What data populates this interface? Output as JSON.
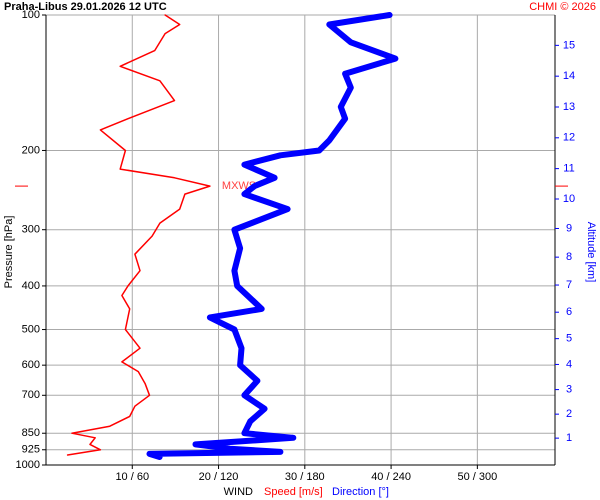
{
  "chart_data": {
    "type": "profile",
    "title": "Praha-Libus    29.01.2026 12 UTC",
    "credit": "CHMI © 2026",
    "ylabel": "Pressure [hPa]",
    "y2label": "Altitude [km]",
    "xlabel": "WIND",
    "ylog": true,
    "ylim": [
      100,
      1000
    ],
    "yticks": [
      100,
      200,
      300,
      400,
      500,
      600,
      700,
      850,
      925,
      1000
    ],
    "y2ticks": [
      1,
      2,
      3,
      4,
      5,
      6,
      7,
      8,
      9,
      10,
      11,
      12,
      13,
      14,
      15
    ],
    "xlim": [
      0,
      59
    ],
    "xticks": [
      {
        "value": 10,
        "label": "10 / 60"
      },
      {
        "value": 20,
        "label": "20 / 120"
      },
      {
        "value": 30,
        "label": "30 / 180"
      },
      {
        "value": 40,
        "label": "40 / 240"
      },
      {
        "value": 50,
        "label": "50 / 300"
      }
    ],
    "grid": true,
    "max_wind": {
      "label": "MXWS",
      "pressure": 240,
      "value": 19.0
    },
    "series": [
      {
        "name": "Speed [m/s]",
        "color": "#ff0000",
        "width": 1.5,
        "xlim": [
          0,
          59
        ],
        "pressure": [
          950,
          925,
          900,
          870,
          850,
          820,
          780,
          740,
          700,
          660,
          620,
          590,
          550,
          500,
          450,
          420,
          400,
          370,
          340,
          310,
          290,
          270,
          250,
          240,
          230,
          220,
          200,
          180,
          170,
          155,
          140,
          130,
          120,
          110,
          105,
          100
        ],
        "values": [
          2.5,
          6.3,
          5.1,
          5.7,
          3.0,
          7.4,
          9.7,
          10.3,
          12.0,
          11.5,
          10.7,
          8.8,
          10.9,
          9.2,
          9.7,
          8.8,
          9.5,
          10.9,
          10.3,
          12.3,
          13.2,
          15.5,
          16.1,
          19.0,
          14.9,
          8.6,
          9.2,
          6.3,
          9.5,
          14.9,
          13.2,
          8.6,
          12.6,
          13.8,
          15.5,
          13.8
        ]
      },
      {
        "name": "Direction [°]",
        "color": "#0000ff",
        "width": 6,
        "xlim": [
          0,
          354
        ],
        "pressure": [
          960,
          945,
          935,
          920,
          900,
          870,
          850,
          800,
          750,
          700,
          650,
          600,
          550,
          500,
          470,
          450,
          400,
          370,
          330,
          300,
          270,
          250,
          240,
          230,
          215,
          205,
          200,
          190,
          170,
          160,
          145,
          135,
          125,
          115,
          105,
          100
        ],
        "values": [
          79,
          72,
          163,
          128,
          104,
          172,
          138,
          142,
          152,
          138,
          147,
          135,
          136,
          131,
          114,
          150,
          133,
          131,
          135,
          131,
          168,
          138,
          145,
          159,
          138,
          163,
          190,
          197,
          208,
          205,
          212,
          208,
          243,
          212,
          197,
          239
        ]
      }
    ]
  }
}
